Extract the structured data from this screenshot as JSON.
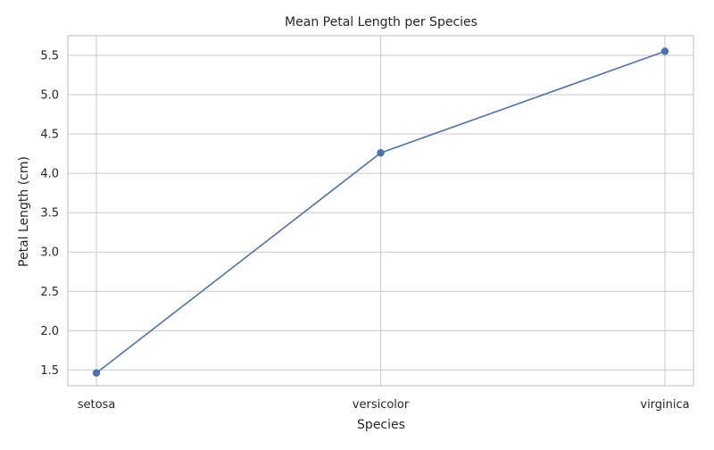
{
  "chart_data": {
    "type": "line",
    "title": "Mean Petal Length per Species",
    "xlabel": "Species",
    "ylabel": "Petal Length (cm)",
    "categories": [
      "setosa",
      "versicolor",
      "virginica"
    ],
    "values": [
      1.462,
      4.26,
      5.552
    ],
    "ylim": [
      1.3,
      5.75
    ],
    "yticks": [
      1.5,
      2.0,
      2.5,
      3.0,
      3.5,
      4.0,
      4.5,
      5.0,
      5.5
    ],
    "ytick_labels": [
      "1.5",
      "2.0",
      "2.5",
      "3.0",
      "3.5",
      "4.0",
      "4.5",
      "5.0",
      "5.5"
    ],
    "grid": true,
    "legend": "none",
    "colors": {
      "line": "#4c72b0",
      "grid": "#cccccc",
      "spine": "#cccccc",
      "text": "#262626"
    }
  }
}
